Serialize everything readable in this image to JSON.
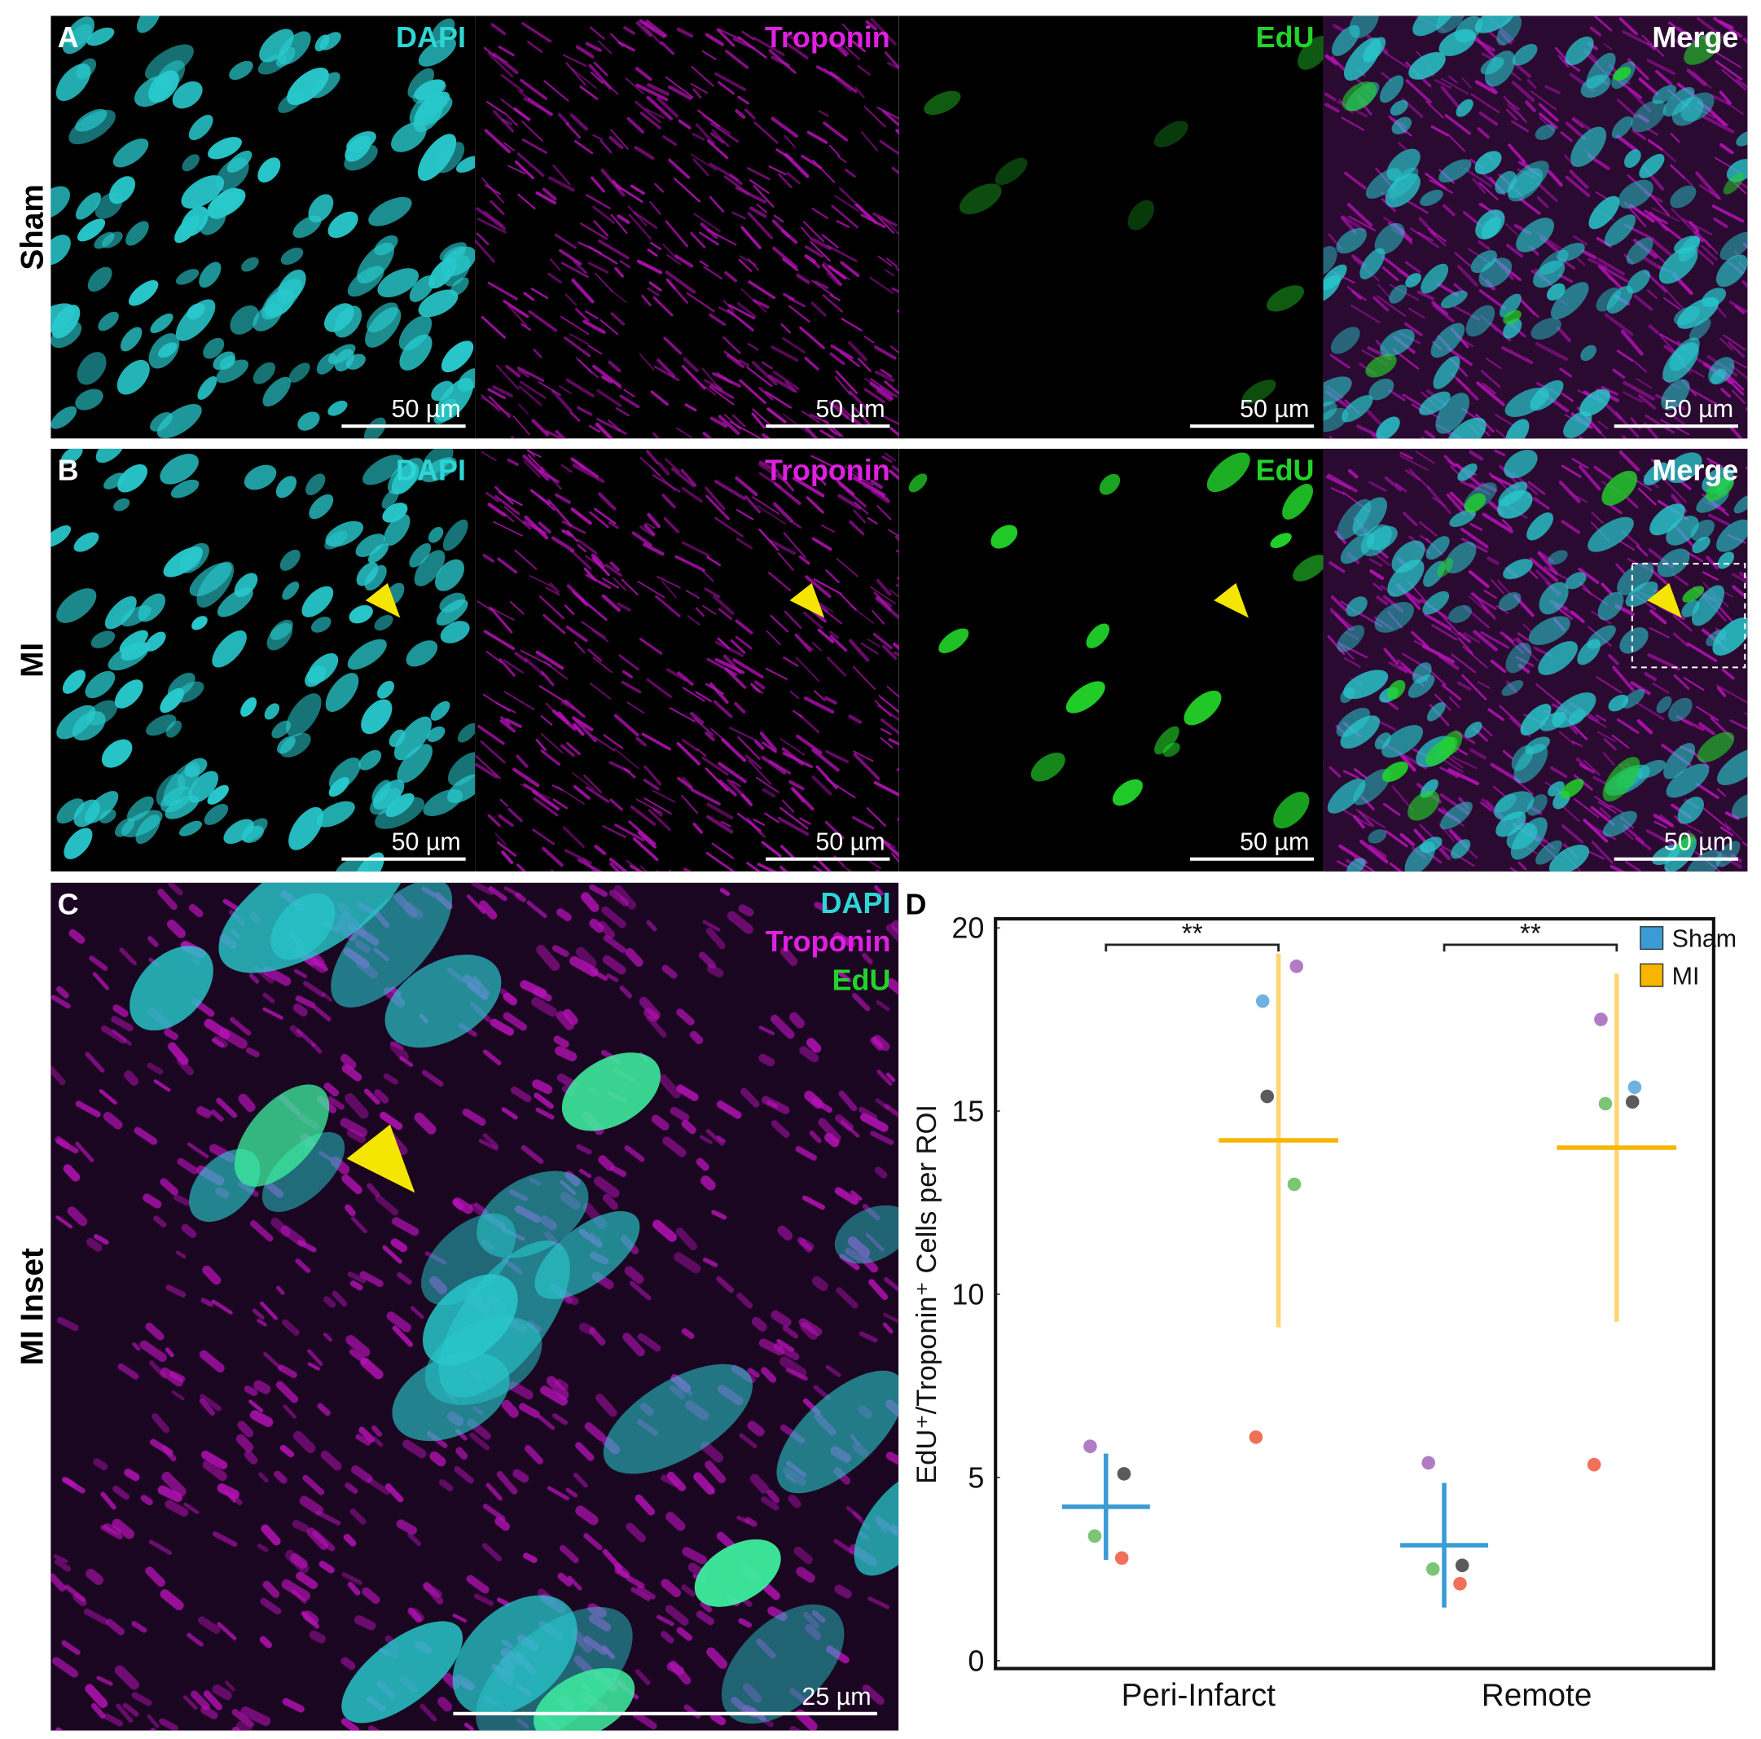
{
  "panels": {
    "rows": [
      {
        "letter": "A",
        "label": "Sham"
      },
      {
        "letter": "B",
        "label": "MI"
      }
    ],
    "channels": [
      "DAPI",
      "Troponin",
      "EdU",
      "Merge"
    ],
    "scale_bar": "50 µm",
    "inset": {
      "letter": "C",
      "label": "MI Inset",
      "channels": [
        "DAPI",
        "Troponin",
        "EdU"
      ],
      "scale_bar": "25 µm"
    }
  },
  "chart_data": {
    "type": "dot",
    "panel_label": "D",
    "y_label": "EdU⁺/Troponin⁺ Cells per ROI",
    "categories": [
      "Peri-Infarct",
      "Remote"
    ],
    "ylim": [
      0,
      20
    ],
    "yticks": [
      0,
      5,
      10,
      15,
      20
    ],
    "annotations": [
      "**",
      "**"
    ],
    "legend": "top-right",
    "series": [
      {
        "name": "Sham",
        "color": "#3a9bd5",
        "values": [
          4.2,
          3.15
        ],
        "errors": [
          1.45,
          1.7
        ],
        "points": [
          [
            5.85,
            5.1,
            3.4,
            2.8
          ],
          [
            5.4,
            2.6,
            2.5,
            2.1
          ]
        ],
        "point_colors": [
          [
            "#b07cc6",
            "#5b5b5b",
            "#7cc576",
            "#f0705a"
          ],
          [
            "#b07cc6",
            "#5b5b5b",
            "#7cc576",
            "#f0705a"
          ]
        ]
      },
      {
        "name": "MI",
        "color": "#f7b500",
        "values": [
          14.2,
          14.0
        ],
        "errors": [
          5.1,
          4.75
        ],
        "points": [
          [
            18.0,
            18.95,
            15.4,
            13.0,
            6.1
          ],
          [
            17.5,
            15.65,
            15.2,
            15.25,
            5.35
          ]
        ],
        "point_colors": [
          [
            "#6fb2e0",
            "#b07cc6",
            "#5b5b5b",
            "#7cc576",
            "#f0705a"
          ],
          [
            "#b07cc6",
            "#6fb2e0",
            "#7cc576",
            "#5b5b5b",
            "#f0705a"
          ]
        ]
      }
    ]
  }
}
